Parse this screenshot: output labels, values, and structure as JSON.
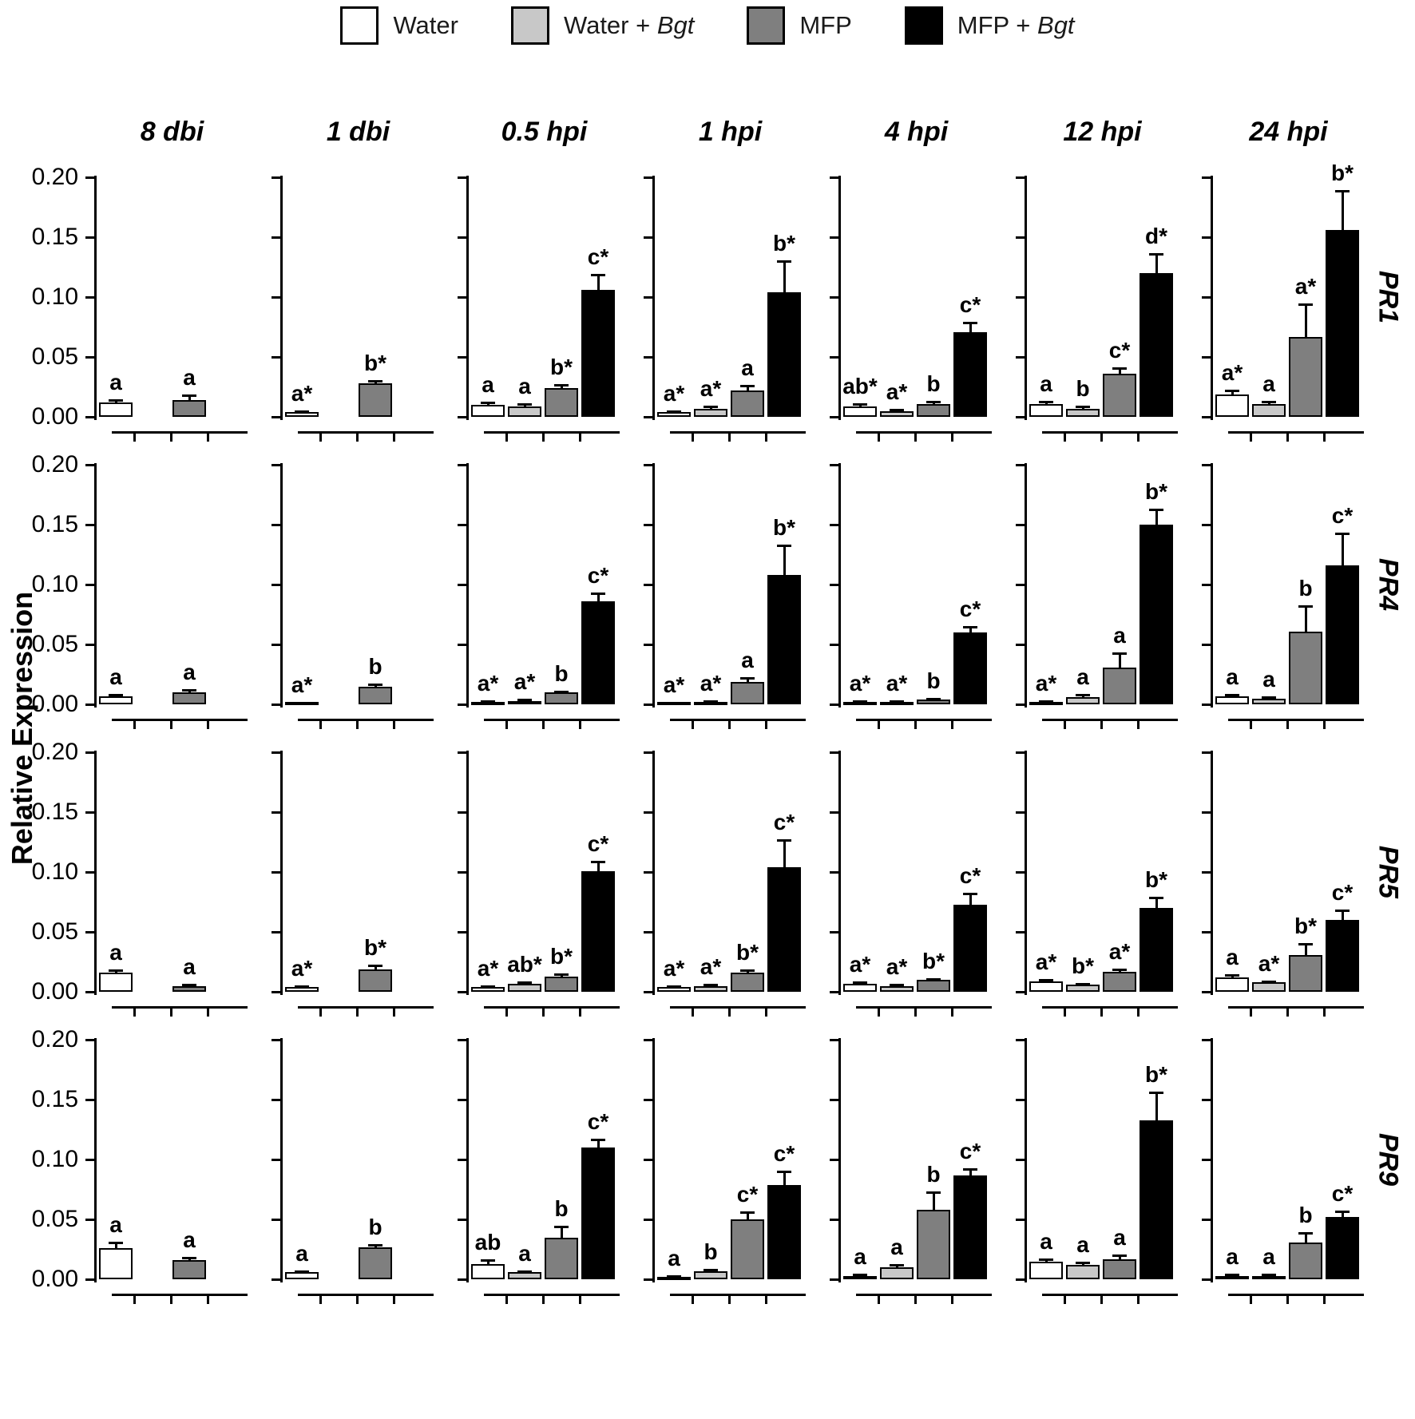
{
  "figure": {
    "ylabel": "Relative Expression",
    "ytick_labels": [
      "0.00",
      "0.05",
      "0.10",
      "0.15",
      "0.20"
    ]
  },
  "legend": {
    "items": [
      {
        "name": "water",
        "prefix": "Water",
        "italic": "",
        "color": "#ffffff"
      },
      {
        "name": "water-bgt",
        "prefix": "Water + ",
        "italic": "Bgt",
        "color": "#c8c8c8"
      },
      {
        "name": "mfp",
        "prefix": "MFP",
        "italic": "",
        "color": "#7f7f7f"
      },
      {
        "name": "mfp-bgt",
        "prefix": "MFP + ",
        "italic": "Bgt",
        "color": "#000000"
      }
    ]
  },
  "chart_data": {
    "type": "bar",
    "layout": "4 gene rows x 7 timepoint columns of grouped bar panels with error bars and significance letters",
    "rows": [
      "PR1",
      "PR4",
      "PR5",
      "PR9"
    ],
    "columns": [
      "8 dbi",
      "1 dbi",
      "0.5 hpi",
      "1 hpi",
      "4 hpi",
      "12 hpi",
      "24 hpi"
    ],
    "treatments": [
      "Water",
      "Water+Bgt",
      "MFP",
      "MFP+Bgt"
    ],
    "colors": [
      "#ffffff",
      "#c8c8c8",
      "#7f7f7f",
      "#000000"
    ],
    "ylabel": "Relative Expression",
    "ylim": [
      0,
      0.2
    ],
    "yticks": [
      0.0,
      0.05,
      0.1,
      0.15,
      0.2
    ],
    "legend_position": "top",
    "panels": [
      {
        "gene": "PR1",
        "cells": [
          {
            "time": "8 dbi",
            "treatments": [
              "Water",
              "MFP"
            ],
            "values": [
              0.012,
              0.014
            ],
            "errors": [
              0.002,
              0.004
            ],
            "labels": [
              "a",
              "a"
            ]
          },
          {
            "time": "1 dbi",
            "treatments": [
              "Water",
              "MFP"
            ],
            "values": [
              0.004,
              0.028
            ],
            "errors": [
              0.001,
              0.002
            ],
            "labels": [
              "a*",
              "b*"
            ]
          },
          {
            "time": "0.5 hpi",
            "treatments": [
              "Water",
              "Water+Bgt",
              "MFP",
              "MFP+Bgt"
            ],
            "values": [
              0.01,
              0.009,
              0.024,
              0.106
            ],
            "errors": [
              0.002,
              0.002,
              0.003,
              0.013
            ],
            "labels": [
              "a",
              "a",
              "b*",
              "c*"
            ]
          },
          {
            "time": "1 hpi",
            "treatments": [
              "Water",
              "Water+Bgt",
              "MFP",
              "MFP+Bgt"
            ],
            "values": [
              0.004,
              0.007,
              0.022,
              0.104
            ],
            "errors": [
              0.001,
              0.002,
              0.004,
              0.026
            ],
            "labels": [
              "a*",
              "a*",
              "a",
              "b*"
            ]
          },
          {
            "time": "4 hpi",
            "treatments": [
              "Water",
              "Water+Bgt",
              "MFP",
              "MFP+Bgt"
            ],
            "values": [
              0.009,
              0.005,
              0.011,
              0.071
            ],
            "errors": [
              0.002,
              0.001,
              0.002,
              0.008
            ],
            "labels": [
              "ab*",
              "a*",
              "b",
              "c*"
            ]
          },
          {
            "time": "12 hpi",
            "treatments": [
              "Water",
              "Water+Bgt",
              "MFP",
              "MFP+Bgt"
            ],
            "values": [
              0.011,
              0.007,
              0.036,
              0.12
            ],
            "errors": [
              0.002,
              0.002,
              0.005,
              0.016
            ],
            "labels": [
              "a",
              "b",
              "c*",
              "d*"
            ]
          },
          {
            "time": "24 hpi",
            "treatments": [
              "Water",
              "Water+Bgt",
              "MFP",
              "MFP+Bgt"
            ],
            "values": [
              0.019,
              0.011,
              0.067,
              0.156
            ],
            "errors": [
              0.003,
              0.002,
              0.027,
              0.033
            ],
            "labels": [
              "a*",
              "a",
              "a*",
              "b*"
            ]
          }
        ]
      },
      {
        "gene": "PR4",
        "cells": [
          {
            "time": "8 dbi",
            "treatments": [
              "Water",
              "MFP"
            ],
            "values": [
              0.007,
              0.01
            ],
            "errors": [
              0.001,
              0.002
            ],
            "labels": [
              "a",
              "a"
            ]
          },
          {
            "time": "1 dbi",
            "treatments": [
              "Water",
              "MFP"
            ],
            "values": [
              0.001,
              0.015
            ],
            "errors": [
              0.0005,
              0.002
            ],
            "labels": [
              "a*",
              "b"
            ]
          },
          {
            "time": "0.5 hpi",
            "treatments": [
              "Water",
              "Water+Bgt",
              "MFP",
              "MFP+Bgt"
            ],
            "values": [
              0.002,
              0.003,
              0.01,
              0.086
            ],
            "errors": [
              0.001,
              0.001,
              0.001,
              0.007
            ],
            "labels": [
              "a*",
              "a*",
              "b",
              "c*"
            ]
          },
          {
            "time": "1 hpi",
            "treatments": [
              "Water",
              "Water+Bgt",
              "MFP",
              "MFP+Bgt"
            ],
            "values": [
              0.001,
              0.002,
              0.019,
              0.108
            ],
            "errors": [
              0.0005,
              0.001,
              0.003,
              0.025
            ],
            "labels": [
              "a*",
              "a*",
              "a",
              "b*"
            ]
          },
          {
            "time": "4 hpi",
            "treatments": [
              "Water",
              "Water+Bgt",
              "MFP",
              "MFP+Bgt"
            ],
            "values": [
              0.002,
              0.002,
              0.004,
              0.06
            ],
            "errors": [
              0.001,
              0.001,
              0.001,
              0.005
            ],
            "labels": [
              "a*",
              "a*",
              "b",
              "c*"
            ]
          },
          {
            "time": "12 hpi",
            "treatments": [
              "Water",
              "Water+Bgt",
              "MFP",
              "MFP+Bgt"
            ],
            "values": [
              0.002,
              0.006,
              0.031,
              0.15
            ],
            "errors": [
              0.001,
              0.002,
              0.012,
              0.013
            ],
            "labels": [
              "a*",
              "a",
              "a",
              "b*"
            ]
          },
          {
            "time": "24 hpi",
            "treatments": [
              "Water",
              "Water+Bgt",
              "MFP",
              "MFP+Bgt"
            ],
            "values": [
              0.007,
              0.005,
              0.061,
              0.116
            ],
            "errors": [
              0.001,
              0.001,
              0.021,
              0.027
            ],
            "labels": [
              "a",
              "a",
              "b",
              "c*"
            ]
          }
        ]
      },
      {
        "gene": "PR5",
        "cells": [
          {
            "time": "8 dbi",
            "treatments": [
              "Water",
              "MFP"
            ],
            "values": [
              0.016,
              0.005
            ],
            "errors": [
              0.002,
              0.001
            ],
            "labels": [
              "a",
              "a"
            ]
          },
          {
            "time": "1 dbi",
            "treatments": [
              "Water",
              "MFP"
            ],
            "values": [
              0.004,
              0.019
            ],
            "errors": [
              0.001,
              0.003
            ],
            "labels": [
              "a*",
              "b*"
            ]
          },
          {
            "time": "0.5 hpi",
            "treatments": [
              "Water",
              "Water+Bgt",
              "MFP",
              "MFP+Bgt"
            ],
            "values": [
              0.004,
              0.007,
              0.013,
              0.101
            ],
            "errors": [
              0.001,
              0.001,
              0.002,
              0.008
            ],
            "labels": [
              "a*",
              "ab*",
              "b*",
              "c*"
            ]
          },
          {
            "time": "1 hpi",
            "treatments": [
              "Water",
              "Water+Bgt",
              "MFP",
              "MFP+Bgt"
            ],
            "values": [
              0.004,
              0.005,
              0.016,
              0.104
            ],
            "errors": [
              0.001,
              0.001,
              0.002,
              0.023
            ],
            "labels": [
              "a*",
              "a*",
              "b*",
              "c*"
            ]
          },
          {
            "time": "4 hpi",
            "treatments": [
              "Water",
              "Water+Bgt",
              "MFP",
              "MFP+Bgt"
            ],
            "values": [
              0.007,
              0.005,
              0.01,
              0.073
            ],
            "errors": [
              0.001,
              0.001,
              0.001,
              0.009
            ],
            "labels": [
              "a*",
              "a*",
              "b*",
              "c*"
            ]
          },
          {
            "time": "12 hpi",
            "treatments": [
              "Water",
              "Water+Bgt",
              "MFP",
              "MFP+Bgt"
            ],
            "values": [
              0.009,
              0.006,
              0.017,
              0.07
            ],
            "errors": [
              0.001,
              0.001,
              0.002,
              0.009
            ],
            "labels": [
              "a*",
              "b*",
              "a*",
              "b*"
            ]
          },
          {
            "time": "24 hpi",
            "treatments": [
              "Water",
              "Water+Bgt",
              "MFP",
              "MFP+Bgt"
            ],
            "values": [
              0.012,
              0.008,
              0.031,
              0.06
            ],
            "errors": [
              0.002,
              0.001,
              0.009,
              0.008
            ],
            "labels": [
              "a",
              "a*",
              "b*",
              "c*"
            ]
          }
        ]
      },
      {
        "gene": "PR9",
        "cells": [
          {
            "time": "8 dbi",
            "treatments": [
              "Water",
              "MFP"
            ],
            "values": [
              0.026,
              0.016
            ],
            "errors": [
              0.005,
              0.002
            ],
            "labels": [
              "a",
              "a"
            ]
          },
          {
            "time": "1 dbi",
            "treatments": [
              "Water",
              "MFP"
            ],
            "values": [
              0.006,
              0.027
            ],
            "errors": [
              0.001,
              0.002
            ],
            "labels": [
              "a",
              "b"
            ]
          },
          {
            "time": "0.5 hpi",
            "treatments": [
              "Water",
              "Water+Bgt",
              "MFP",
              "MFP+Bgt"
            ],
            "values": [
              0.013,
              0.006,
              0.035,
              0.11
            ],
            "errors": [
              0.003,
              0.001,
              0.009,
              0.007
            ],
            "labels": [
              "ab",
              "a",
              "b",
              "c*"
            ]
          },
          {
            "time": "1 hpi",
            "treatments": [
              "Water",
              "Water+Bgt",
              "MFP",
              "MFP+Bgt"
            ],
            "values": [
              0.002,
              0.007,
              0.05,
              0.079
            ],
            "errors": [
              0.001,
              0.001,
              0.006,
              0.011
            ],
            "labels": [
              "a",
              "b",
              "c*",
              "c*"
            ]
          },
          {
            "time": "4 hpi",
            "treatments": [
              "Water",
              "Water+Bgt",
              "MFP",
              "MFP+Bgt"
            ],
            "values": [
              0.003,
              0.01,
              0.058,
              0.087
            ],
            "errors": [
              0.001,
              0.002,
              0.015,
              0.005
            ],
            "labels": [
              "a",
              "a",
              "b",
              "c*"
            ]
          },
          {
            "time": "12 hpi",
            "treatments": [
              "Water",
              "Water+Bgt",
              "MFP",
              "MFP+Bgt"
            ],
            "values": [
              0.015,
              0.012,
              0.017,
              0.133
            ],
            "errors": [
              0.002,
              0.002,
              0.003,
              0.023
            ],
            "labels": [
              "a",
              "a",
              "a",
              "b*"
            ]
          },
          {
            "time": "24 hpi",
            "treatments": [
              "Water",
              "Water+Bgt",
              "MFP",
              "MFP+Bgt"
            ],
            "values": [
              0.003,
              0.003,
              0.031,
              0.052
            ],
            "errors": [
              0.001,
              0.001,
              0.008,
              0.005
            ],
            "labels": [
              "a",
              "a",
              "b",
              "c*"
            ]
          }
        ]
      }
    ]
  }
}
